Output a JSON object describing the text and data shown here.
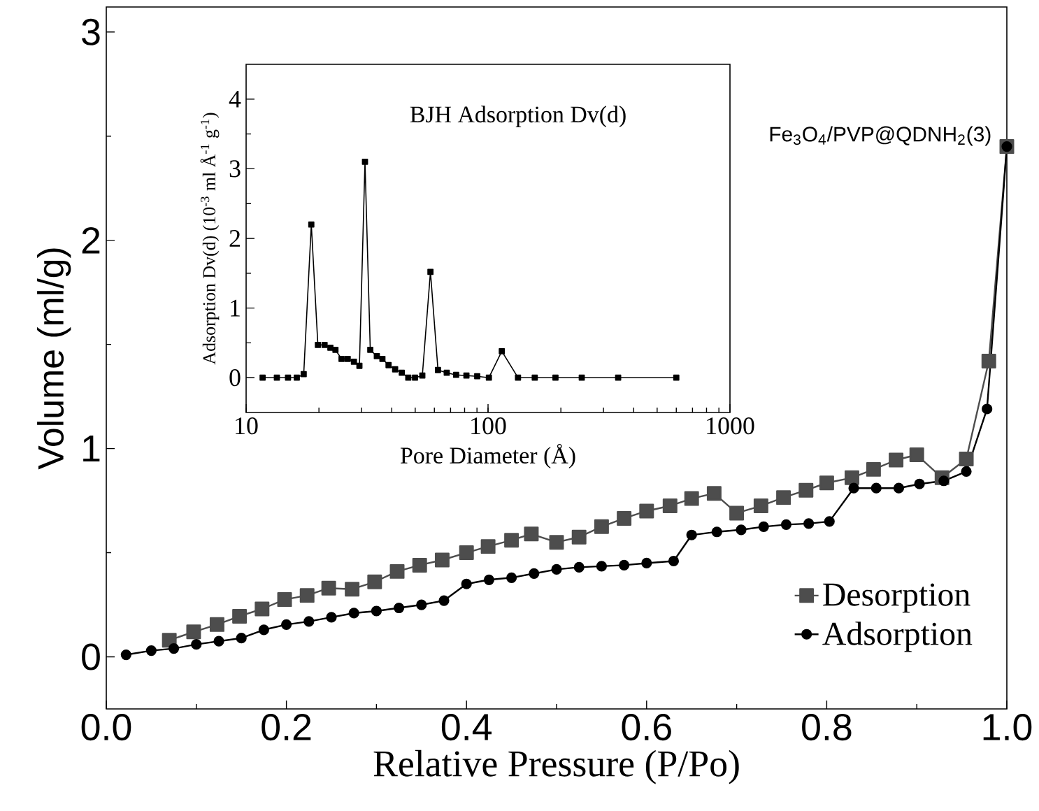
{
  "chart_data": [
    {
      "type": "line",
      "xlabel": "Relative Pressure (P/Po)",
      "ylabel": "Volume (ml/g)",
      "xlim": [
        0,
        1.0
      ],
      "ylim": [
        -0.25,
        3.12
      ],
      "xticks": [
        {
          "value": 0,
          "label": "0.0"
        },
        0.2,
        0.4,
        0.6,
        0.8,
        {
          "value": 1.0,
          "label": "1.0"
        }
      ],
      "yticks": [
        0,
        1,
        2,
        3
      ],
      "legend": "bottom right",
      "annotations": [
        "Fe$_{3}$O$_{4}$/PVP@QDNH$_{2}$(3)"
      ],
      "series": [
        {
          "name": "Desorption",
          "color": "#4d4d4d",
          "marker": "square",
          "x": [
            1.0,
            0.98,
            0.955,
            0.928,
            0.9,
            0.877,
            0.852,
            0.828,
            0.8,
            0.777,
            0.752,
            0.727,
            0.7,
            0.675,
            0.65,
            0.626,
            0.6,
            0.575,
            0.55,
            0.525,
            0.5,
            0.472,
            0.45,
            0.424,
            0.4,
            0.373,
            0.348,
            0.323,
            0.298,
            0.273,
            0.247,
            0.223,
            0.198,
            0.173,
            0.148,
            0.123,
            0.097,
            0.07
          ],
          "values": [
            2.45,
            1.42,
            0.95,
            0.86,
            0.97,
            0.945,
            0.9,
            0.86,
            0.835,
            0.8,
            0.765,
            0.725,
            0.69,
            0.785,
            0.76,
            0.725,
            0.7,
            0.665,
            0.625,
            0.575,
            0.55,
            0.59,
            0.56,
            0.53,
            0.5,
            0.465,
            0.44,
            0.41,
            0.36,
            0.325,
            0.33,
            0.295,
            0.275,
            0.23,
            0.195,
            0.155,
            0.12,
            0.08
          ]
        },
        {
          "name": "Adsorption",
          "color": "#000000",
          "marker": "circle",
          "x": [
            0.022,
            0.05,
            0.075,
            0.1,
            0.125,
            0.15,
            0.175,
            0.2,
            0.225,
            0.25,
            0.275,
            0.3,
            0.325,
            0.35,
            0.375,
            0.4,
            0.425,
            0.45,
            0.475,
            0.5,
            0.525,
            0.55,
            0.575,
            0.6,
            0.63,
            0.65,
            0.678,
            0.705,
            0.73,
            0.755,
            0.78,
            0.803,
            0.83,
            0.855,
            0.88,
            0.903,
            0.93,
            0.955,
            0.978,
            1.0
          ],
          "values": [
            0.01,
            0.03,
            0.04,
            0.06,
            0.075,
            0.09,
            0.13,
            0.155,
            0.17,
            0.19,
            0.21,
            0.22,
            0.235,
            0.25,
            0.27,
            0.35,
            0.37,
            0.38,
            0.4,
            0.42,
            0.43,
            0.435,
            0.44,
            0.45,
            0.46,
            0.585,
            0.6,
            0.61,
            0.625,
            0.635,
            0.64,
            0.65,
            0.81,
            0.81,
            0.81,
            0.83,
            0.845,
            0.89,
            1.19,
            2.45
          ]
        }
      ]
    },
    {
      "type": "line",
      "xlabel": "Pore Diameter (Å)",
      "ylabel": "Adsorption Dv(d) (10$^{-3}$ ml Å$^{-1}$ g$^{-1}$)",
      "log": "x",
      "xlim": [
        10,
        1000
      ],
      "ylim": [
        -0.5,
        4.5
      ],
      "xticks": [
        10,
        100,
        1000
      ],
      "yticks": [
        0,
        1,
        2,
        3,
        4
      ],
      "annotations": [
        "BJH Adsorption Dv(d)"
      ],
      "series": [
        {
          "color": "#000000",
          "marker": "square",
          "x": [
            11.7,
            13.4,
            14.9,
            16.2,
            17.3,
            18.6,
            19.8,
            21.1,
            22.3,
            23.4,
            24.8,
            26.3,
            27.9,
            29.4,
            31.0,
            32.6,
            34.7,
            36.6,
            38.8,
            41.3,
            44.0,
            46.8,
            49.9,
            53.5,
            57.8,
            62.1,
            67.5,
            73.8,
            81.4,
            90.2,
            100.8,
            114,
            133,
            156,
            190,
            244,
            345,
            600
          ],
          "values": [
            0,
            0,
            0,
            0,
            0.05,
            2.2,
            0.47,
            0.47,
            0.43,
            0.4,
            0.27,
            0.27,
            0.23,
            0.17,
            3.1,
            0.4,
            0.31,
            0.27,
            0.18,
            0.12,
            0.07,
            0,
            0,
            0.03,
            1.52,
            0.11,
            0.07,
            0.04,
            0.03,
            0.02,
            0,
            0.38,
            0,
            0,
            0,
            0,
            0,
            0
          ]
        }
      ]
    }
  ]
}
